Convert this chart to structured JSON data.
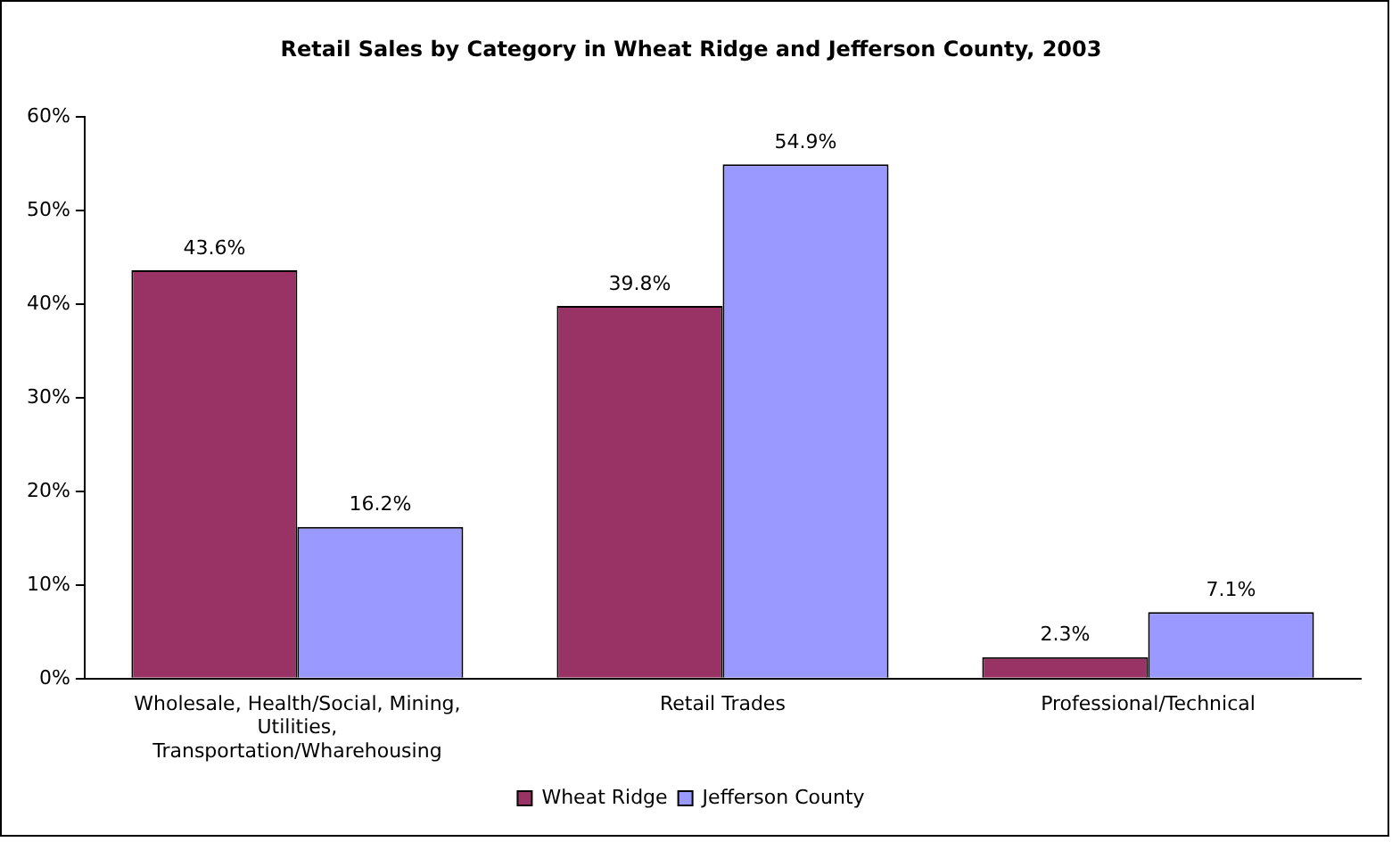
{
  "chart_data": {
    "type": "bar",
    "title": "Retail Sales by Category in Wheat Ridge and Jefferson County, 2003",
    "categories": [
      "Wholesale, Health/Social, Mining, Utilities, Transportation/Wharehousing",
      "Retail Trades",
      "Professional/Technical"
    ],
    "series": [
      {
        "name": "Wheat Ridge",
        "color": "#993366",
        "values": [
          43.6,
          39.8,
          2.3
        ],
        "value_labels": [
          "43.6%",
          "39.8%",
          "2.3%"
        ]
      },
      {
        "name": "Jefferson County",
        "color": "#9999ff",
        "values": [
          16.2,
          54.9,
          7.1
        ],
        "value_labels": [
          "16.2%",
          "54.9%",
          "7.1%"
        ]
      }
    ],
    "ylim": [
      0,
      60
    ],
    "yticks": [
      {
        "value": 0,
        "label": "0%"
      },
      {
        "value": 10,
        "label": "10%"
      },
      {
        "value": 20,
        "label": "20%"
      },
      {
        "value": 30,
        "label": "30%"
      },
      {
        "value": 40,
        "label": "40%"
      },
      {
        "value": 50,
        "label": "50%"
      },
      {
        "value": 60,
        "label": "60%"
      }
    ],
    "grid": false,
    "legend": "bottom"
  }
}
